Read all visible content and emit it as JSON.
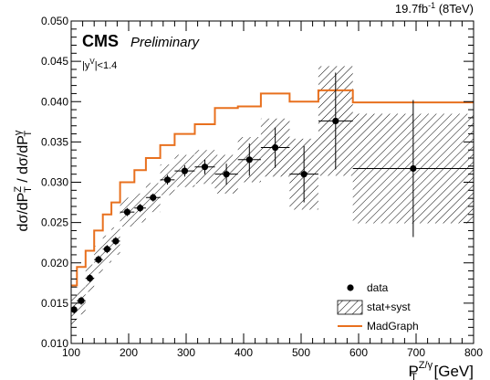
{
  "chart_data": {
    "type": "scatter",
    "lumi_label": "19.7fb",
    "lumi_sup": "-1",
    "lumi_energy": " (8TeV)",
    "experiment": "CMS",
    "status": "Preliminary",
    "selection": {
      "pre": "|y",
      "sup": "V",
      "post": "|<1.4"
    },
    "ylabel": {
      "p1": "dσ/dP",
      "sub1": "T",
      "sup1": "Z",
      "p2": " / dσ/dP",
      "sub2": "T",
      "sup2": "γ"
    },
    "xlabel": {
      "base": "P",
      "sub": "T",
      "sup": "Z/γ",
      "unit": " [GeV]"
    },
    "xlim": [
      100,
      800
    ],
    "ylim": [
      0.01,
      0.05
    ],
    "x_ticks": [
      "100",
      "200",
      "300",
      "400",
      "500",
      "600",
      "700",
      "800"
    ],
    "y_ticks": [
      "0.010",
      "0.015",
      "0.020",
      "0.025",
      "0.030",
      "0.035",
      "0.040",
      "0.045",
      "0.050"
    ],
    "legend": [
      {
        "label": "data",
        "kind": "marker"
      },
      {
        "label": "stat+syst",
        "kind": "hatch"
      },
      {
        "label": "MadGraph",
        "kind": "line"
      }
    ],
    "legend_placement": "bottom-right",
    "colors": {
      "data": "#000000",
      "madgraph": "#e8701e",
      "band": "#000000"
    },
    "data": [
      {
        "x": 105,
        "y": 0.0142,
        "xlo": 100,
        "xhi": 110,
        "stat": 0.0005,
        "syst": 0.0018
      },
      {
        "x": 117.5,
        "y": 0.0153,
        "xlo": 110,
        "xhi": 125,
        "stat": 0.0005,
        "syst": 0.0017
      },
      {
        "x": 132.5,
        "y": 0.0181,
        "xlo": 125,
        "xhi": 140,
        "stat": 0.0005,
        "syst": 0.0017
      },
      {
        "x": 147.5,
        "y": 0.0204,
        "xlo": 140,
        "xhi": 155,
        "stat": 0.0005,
        "syst": 0.0017
      },
      {
        "x": 162.5,
        "y": 0.0217,
        "xlo": 155,
        "xhi": 170,
        "stat": 0.0005,
        "syst": 0.0017
      },
      {
        "x": 177.5,
        "y": 0.0227,
        "xlo": 170,
        "xhi": 185,
        "stat": 0.0005,
        "syst": 0.0017
      },
      {
        "x": 197.5,
        "y": 0.0263,
        "xlo": 185,
        "xhi": 210,
        "stat": 0.0005,
        "syst": 0.0018
      },
      {
        "x": 220,
        "y": 0.0268,
        "xlo": 210,
        "xhi": 230,
        "stat": 0.0005,
        "syst": 0.0018
      },
      {
        "x": 242.5,
        "y": 0.0281,
        "xlo": 230,
        "xhi": 255,
        "stat": 0.0005,
        "syst": 0.0018
      },
      {
        "x": 267.5,
        "y": 0.0303,
        "xlo": 255,
        "xhi": 280,
        "stat": 0.0006,
        "syst": 0.0019
      },
      {
        "x": 297.5,
        "y": 0.0314,
        "xlo": 280,
        "xhi": 315,
        "stat": 0.0007,
        "syst": 0.002
      },
      {
        "x": 332.5,
        "y": 0.0319,
        "xlo": 315,
        "xhi": 350,
        "stat": 0.0009,
        "syst": 0.0021
      },
      {
        "x": 370,
        "y": 0.031,
        "xlo": 350,
        "xhi": 390,
        "stat": 0.0013,
        "syst": 0.0024
      },
      {
        "x": 410,
        "y": 0.0328,
        "xlo": 390,
        "xhi": 430,
        "stat": 0.002,
        "syst": 0.0028
      },
      {
        "x": 455,
        "y": 0.0343,
        "xlo": 430,
        "xhi": 480,
        "stat": 0.0025,
        "syst": 0.0036
      },
      {
        "x": 505,
        "y": 0.031,
        "xlo": 480,
        "xhi": 530,
        "stat": 0.0035,
        "syst": 0.0044
      },
      {
        "x": 560,
        "y": 0.0376,
        "xlo": 530,
        "xhi": 590,
        "stat": 0.006,
        "syst": 0.0068
      },
      {
        "x": 695,
        "y": 0.0317,
        "xlo": 590,
        "xhi": 800,
        "stat": 0.0085,
        "syst": 0.0068
      }
    ],
    "madgraph": [
      {
        "xlo": 100,
        "xhi": 110,
        "y": 0.0172
      },
      {
        "xlo": 110,
        "xhi": 125,
        "y": 0.0195
      },
      {
        "xlo": 125,
        "xhi": 140,
        "y": 0.0215
      },
      {
        "xlo": 140,
        "xhi": 155,
        "y": 0.024
      },
      {
        "xlo": 155,
        "xhi": 170,
        "y": 0.026
      },
      {
        "xlo": 170,
        "xhi": 185,
        "y": 0.0275
      },
      {
        "xlo": 185,
        "xhi": 210,
        "y": 0.03
      },
      {
        "xlo": 210,
        "xhi": 230,
        "y": 0.0315
      },
      {
        "xlo": 230,
        "xhi": 255,
        "y": 0.033
      },
      {
        "xlo": 255,
        "xhi": 280,
        "y": 0.0346
      },
      {
        "xlo": 280,
        "xhi": 315,
        "y": 0.036
      },
      {
        "xlo": 315,
        "xhi": 350,
        "y": 0.0372
      },
      {
        "xlo": 350,
        "xhi": 390,
        "y": 0.0392
      },
      {
        "xlo": 390,
        "xhi": 430,
        "y": 0.0394
      },
      {
        "xlo": 430,
        "xhi": 480,
        "y": 0.041
      },
      {
        "xlo": 480,
        "xhi": 530,
        "y": 0.04
      },
      {
        "xlo": 530,
        "xhi": 590,
        "y": 0.0414
      },
      {
        "xlo": 590,
        "xhi": 800,
        "y": 0.0399
      }
    ]
  }
}
